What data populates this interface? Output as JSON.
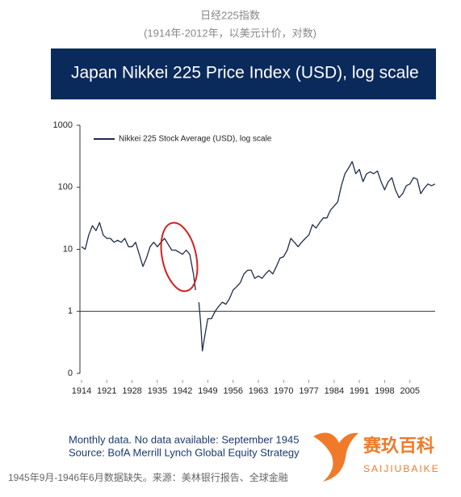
{
  "header": {
    "title": "日经225指数",
    "subtitle": "(1914年-2012年，以美元计价，对数)"
  },
  "chart_data": {
    "type": "line",
    "title": "Japan Nikkei 225 Price Index (USD), log scale",
    "x": [
      1914,
      1915,
      1916,
      1917,
      1918,
      1919,
      1920,
      1921,
      1922,
      1923,
      1924,
      1925,
      1926,
      1927,
      1928,
      1929,
      1930,
      1931,
      1932,
      1933,
      1934,
      1935,
      1936,
      1937,
      1938,
      1939,
      1940,
      1941,
      1942,
      1943,
      1944,
      1945,
      1945.6,
      1946,
      1946.5,
      1947,
      1947.5,
      1948,
      1949,
      1950,
      1951,
      1952,
      1953,
      1954,
      1955,
      1956,
      1957,
      1958,
      1959,
      1960,
      1961,
      1962,
      1963,
      1964,
      1965,
      1966,
      1967,
      1968,
      1969,
      1970,
      1971,
      1972,
      1973,
      1974,
      1975,
      1976,
      1977,
      1978,
      1979,
      1980,
      1981,
      1982,
      1983,
      1984,
      1985,
      1986,
      1987,
      1988,
      1989,
      1990,
      1991,
      1992,
      1993,
      1994,
      1995,
      1996,
      1997,
      1998,
      1999,
      2000,
      2001,
      2002,
      2003,
      2004,
      2005,
      2006,
      2007,
      2008,
      2009,
      2010,
      2011,
      2012
    ],
    "series": [
      {
        "name": "Nikkei 225 Stock Average (USD), log scale",
        "color": "#1f2d4d",
        "values": [
          11,
          10,
          17,
          24,
          20,
          27,
          17,
          15,
          15,
          13,
          14,
          13,
          15,
          11,
          11,
          13,
          8.3,
          5.3,
          7.2,
          11,
          13,
          11,
          13,
          15,
          12,
          9.7,
          9.7,
          9,
          8.3,
          9.7,
          8.3,
          4,
          2.2,
          null,
          1.4,
          0.66,
          0.23,
          0.36,
          0.76,
          0.76,
          1,
          1.2,
          1.4,
          1.3,
          1.6,
          2.2,
          2.5,
          2.9,
          4,
          4.6,
          4.6,
          3.4,
          3.7,
          3.4,
          4,
          4.6,
          4,
          5.3,
          7.2,
          7.6,
          9.7,
          15,
          13,
          11,
          13,
          15,
          17,
          25,
          22,
          27,
          32,
          32,
          43,
          50,
          58,
          106,
          166,
          204,
          260,
          166,
          194,
          123,
          166,
          177,
          166,
          183,
          123,
          91,
          123,
          143,
          91,
          68,
          79,
          106,
          113,
          143,
          135,
          79,
          97,
          113,
          106,
          113
        ]
      }
    ],
    "log_scale": true,
    "xlim": [
      1914,
      2012
    ],
    "xticks": [
      1914,
      1921,
      1928,
      1935,
      1942,
      1949,
      1956,
      1963,
      1970,
      1977,
      1984,
      1991,
      1998,
      2005
    ],
    "ylim": [
      0.1,
      1000
    ],
    "yticks": [
      1000,
      100,
      10,
      1,
      {
        "value": 0.1,
        "label": "0"
      }
    ],
    "notes": [
      "Monthly data. No data available: September 1945",
      "Source: BofA Merrill Lynch Global Equity Strategy"
    ]
  },
  "caption": "1945年9月-1946年6月数据缺失。来源：美林银行报告、全球金融",
  "watermark": {
    "name": "赛玖百科",
    "latin": "SAIJIUBAIKE"
  }
}
